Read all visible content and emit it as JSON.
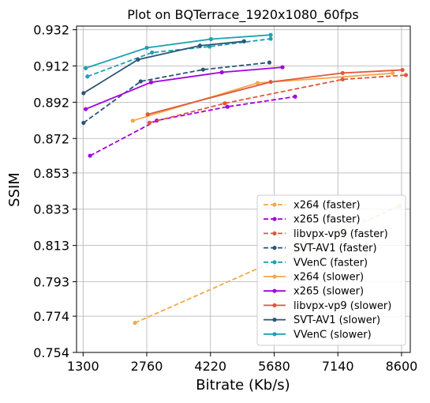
{
  "chart_data": {
    "type": "line",
    "title": "Plot on BQTerrace_1920x1080_60fps",
    "xlabel": "Bitrate (Kb/s)",
    "ylabel": "SSIM",
    "xlim": [
      1150,
      8800
    ],
    "ylim": [
      0.754,
      0.934
    ],
    "xticks": [
      1300,
      2760,
      4220,
      5680,
      7140,
      8600
    ],
    "xtick_labels": [
      "1300",
      "2760",
      "4220",
      "5680",
      "7140",
      "8600"
    ],
    "yticks": [
      0.754,
      0.774,
      0.793,
      0.813,
      0.833,
      0.853,
      0.872,
      0.892,
      0.912,
      0.932
    ],
    "ytick_labels": [
      "0.754",
      "0.774",
      "0.793",
      "0.813",
      "0.833",
      "0.853",
      "0.872",
      "0.892",
      "0.912",
      "0.932"
    ],
    "grid": true,
    "legend_position": "bottom-right",
    "series": [
      {
        "name": "x264 (faster)",
        "color": "#f4a84a",
        "dashed": true,
        "points": [
          [
            2490,
            0.7703
          ],
          [
            8550,
            0.8348
          ]
        ]
      },
      {
        "name": "x265 (faster)",
        "color": "#a400e0",
        "dashed": true,
        "points": [
          [
            1460,
            0.8625
          ],
          [
            2990,
            0.8819
          ],
          [
            4610,
            0.8895
          ],
          [
            6160,
            0.8951
          ]
        ]
      },
      {
        "name": "libvpx-vp9 (faster)",
        "color": "#e0583a",
        "dashed": true,
        "points": [
          [
            2820,
            0.8807
          ],
          [
            4550,
            0.8914
          ],
          [
            7250,
            0.9046
          ],
          [
            8700,
            0.907
          ]
        ]
      },
      {
        "name": "SVT-AV1 (faster)",
        "color": "#2c5478",
        "dashed": true,
        "points": [
          [
            1310,
            0.8806
          ],
          [
            2620,
            0.9035
          ],
          [
            4050,
            0.91
          ],
          [
            5570,
            0.9139
          ]
        ]
      },
      {
        "name": "VVenC (faster)",
        "color": "#1aa3b3",
        "dashed": true,
        "points": [
          [
            1400,
            0.9062
          ],
          [
            2880,
            0.9194
          ],
          [
            4200,
            0.9227
          ],
          [
            5600,
            0.927
          ]
        ]
      },
      {
        "name": "x264 (slower)",
        "color": "#f4a84a",
        "dashed": false,
        "points": [
          [
            2440,
            0.8818
          ],
          [
            5300,
            0.9026
          ],
          [
            8400,
            0.908
          ]
        ]
      },
      {
        "name": "x265 (slower)",
        "color": "#a400e0",
        "dashed": false,
        "points": [
          [
            1360,
            0.8882
          ],
          [
            2860,
            0.903
          ],
          [
            4480,
            0.9085
          ],
          [
            5870,
            0.9113
          ]
        ]
      },
      {
        "name": "libvpx-vp9 (slower)",
        "color": "#e0583a",
        "dashed": false,
        "points": [
          [
            2780,
            0.8853
          ],
          [
            5600,
            0.9032
          ],
          [
            7250,
            0.9081
          ],
          [
            8620,
            0.9098
          ]
        ]
      },
      {
        "name": "SVT-AV1 (slower)",
        "color": "#2c5478",
        "dashed": false,
        "points": [
          [
            1310,
            0.897
          ],
          [
            2560,
            0.9155
          ],
          [
            3980,
            0.9232
          ],
          [
            4990,
            0.9256
          ]
        ]
      },
      {
        "name": "VVenC (slower)",
        "color": "#1aa3b3",
        "dashed": false,
        "points": [
          [
            1360,
            0.9108
          ],
          [
            2760,
            0.922
          ],
          [
            4230,
            0.9268
          ],
          [
            5600,
            0.9291
          ]
        ]
      }
    ]
  }
}
